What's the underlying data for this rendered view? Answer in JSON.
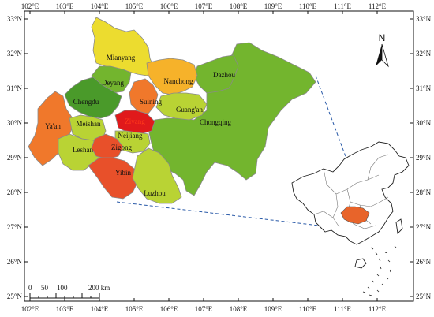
{
  "axes": {
    "top_ticks": [
      "102°E",
      "103°E",
      "104°E",
      "105°E",
      "106°E",
      "107°E",
      "108°E",
      "109°E",
      "110°E",
      "111°E",
      "112°E"
    ],
    "bottom_ticks": [
      "102°E",
      "103°E",
      "104°E",
      "105°E",
      "106°E",
      "107°E",
      "108°E",
      "109°E",
      "110°E",
      "111°E",
      "112°E"
    ],
    "left_ticks": [
      "33°N",
      "32°N",
      "31°N",
      "30°N",
      "29°N",
      "28°N",
      "27°N",
      "26°N",
      "25°N"
    ],
    "right_ticks": [
      "33°N",
      "32°N",
      "31°N",
      "30°N",
      "29°N",
      "28°N",
      "27°N",
      "26°N",
      "25°N"
    ]
  },
  "north_label": "N",
  "scale_bar": {
    "labels": [
      "0",
      "50",
      "100",
      "200 km"
    ]
  },
  "cities": [
    {
      "name": "Mianyang"
    },
    {
      "name": "Nanchong"
    },
    {
      "name": "Dazhou"
    },
    {
      "name": "Deyang"
    },
    {
      "name": "Chengdu"
    },
    {
      "name": "Suining"
    },
    {
      "name": "Guang'an"
    },
    {
      "name": "Ziyang"
    },
    {
      "name": "Chongqing"
    },
    {
      "name": "Ya'an"
    },
    {
      "name": "Meishan"
    },
    {
      "name": "Neijiang"
    },
    {
      "name": "Leshan"
    },
    {
      "name": "Zigong"
    },
    {
      "name": "Yibin"
    },
    {
      "name": "Luzhou"
    }
  ],
  "colors": {
    "dark_green": "#4a9a2a",
    "green": "#73b52e",
    "yellow_green": "#b9d334",
    "yellow": "#ecdc2f",
    "orange_yellow": "#f6b22a",
    "orange": "#f0782b",
    "red_orange": "#e8502a",
    "red": "#e0191b",
    "inset_highlight": "#e8642a",
    "connector": "#2a5aa8"
  }
}
